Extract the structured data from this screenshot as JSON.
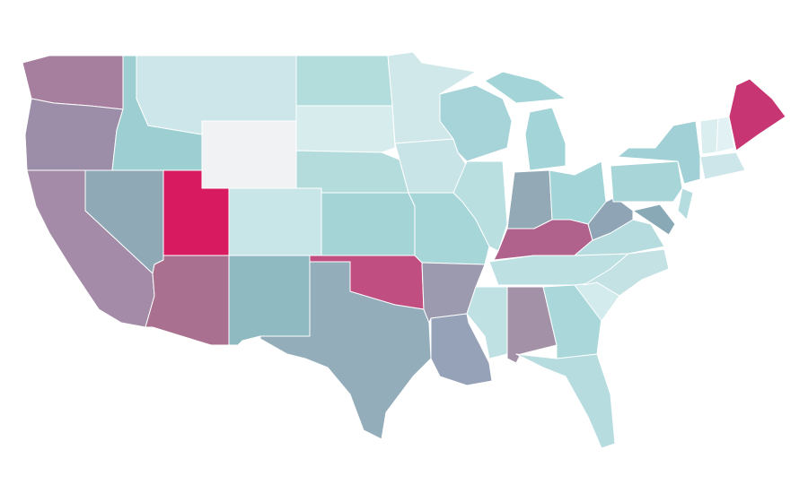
{
  "map": {
    "regions": [
      {
        "color": "#a67e9e"
      },
      {
        "color": "#9c8ea8"
      },
      {
        "color": "#a48ba7"
      },
      {
        "color": "#8fa9b6"
      },
      {
        "color": "#9dcfd2"
      },
      {
        "color": "#cde6e9"
      },
      {
        "color": "#f1f2f4"
      },
      {
        "color": "#d81b60"
      },
      {
        "color": "#a9718f"
      },
      {
        "color": "#c8e5e7"
      },
      {
        "color": "#8fbac2"
      },
      {
        "color": "#b3dcdd"
      },
      {
        "color": "#d6eced"
      },
      {
        "color": "#b4dcdd"
      },
      {
        "color": "#a5d4d7"
      },
      {
        "color": "#c04e81"
      },
      {
        "color": "#94adba"
      },
      {
        "color": "#d0e8ea"
      },
      {
        "color": "#c9e4e6"
      },
      {
        "color": "#a7d6d8"
      },
      {
        "color": "#9b9aae"
      },
      {
        "color": "#96a2b8"
      },
      {
        "color": "#a7d4d8"
      },
      {
        "color": "#b9dfe1"
      },
      {
        "color": "#a3d4d7"
      },
      {
        "color": "#a3d4d7"
      },
      {
        "color": "#93aab6"
      },
      {
        "color": "#a2d4d8"
      },
      {
        "color": "#b0628d"
      },
      {
        "color": "#bde0e3"
      },
      {
        "color": "#bfe1e3"
      },
      {
        "color": "#a391a7"
      },
      {
        "color": "#a9d7da"
      },
      {
        "color": "#b7dcdf"
      },
      {
        "color": "#d3ebed"
      },
      {
        "color": "#c4e2e4"
      },
      {
        "color": "#b7dcdf"
      },
      {
        "color": "#8fa5b6"
      },
      {
        "color": "#a8d5d8"
      },
      {
        "color": "#a1d1d6"
      },
      {
        "color": "#8aa9b7"
      },
      {
        "color": "#b5dcde"
      },
      {
        "color": "#cde6e9"
      },
      {
        "color": "#daeef0"
      },
      {
        "color": "#e2f1f3"
      },
      {
        "color": "#c73572"
      }
    ]
  }
}
